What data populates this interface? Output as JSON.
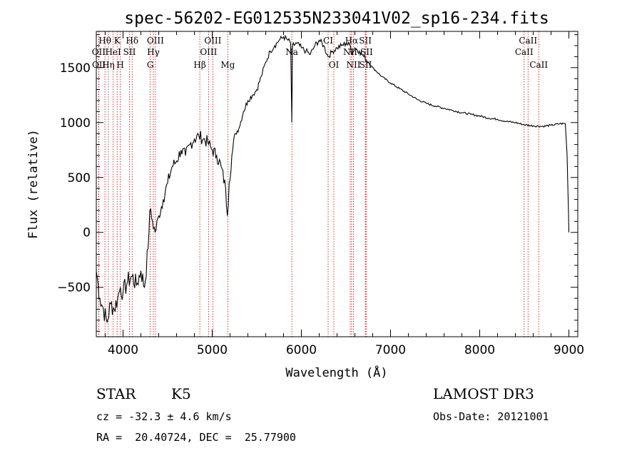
{
  "chart_data": {
    "type": "line",
    "title": "spec-56202-EG012535N233041V02_sp16-234.fits",
    "xlabel": "Wavelength (Å)",
    "ylabel": "Flux (relative)",
    "xlim": [
      3700,
      9100
    ],
    "ylim": [
      -950,
      1830
    ],
    "xticks": [
      4000,
      5000,
      6000,
      7000,
      8000,
      9000
    ],
    "yticks": [
      -500,
      0,
      500,
      1000,
      1500
    ],
    "grid": false,
    "series": [
      {
        "name": "flux",
        "x": [
          3700,
          3740,
          3780,
          3820,
          3860,
          3900,
          3940,
          3970,
          4000,
          4050,
          4100,
          4150,
          4200,
          4240,
          4280,
          4300,
          4330,
          4360,
          4400,
          4450,
          4500,
          4550,
          4600,
          4650,
          4700,
          4750,
          4800,
          4850,
          4900,
          4950,
          5000,
          5050,
          5100,
          5150,
          5170,
          5190,
          5220,
          5260,
          5300,
          5350,
          5400,
          5450,
          5500,
          5550,
          5600,
          5650,
          5700,
          5750,
          5800,
          5850,
          5880,
          5893,
          5900,
          5950,
          6000,
          6050,
          6100,
          6150,
          6200,
          6250,
          6300,
          6350,
          6400,
          6450,
          6500,
          6550,
          6563,
          6600,
          6650,
          6700,
          6750,
          6800,
          6900,
          7000,
          7100,
          7200,
          7300,
          7400,
          7500,
          7600,
          7700,
          7800,
          7900,
          8000,
          8100,
          8200,
          8300,
          8400,
          8500,
          8600,
          8700,
          8800,
          8900,
          8960,
          8980,
          8995,
          9000
        ],
        "y": [
          -350,
          -600,
          -700,
          -820,
          -650,
          -700,
          -600,
          -500,
          -550,
          -450,
          -400,
          -480,
          -350,
          -500,
          -150,
          200,
          100,
          0,
          150,
          300,
          450,
          600,
          650,
          750,
          700,
          800,
          850,
          880,
          850,
          820,
          750,
          700,
          600,
          400,
          150,
          450,
          700,
          900,
          950,
          1100,
          1200,
          1250,
          1300,
          1420,
          1550,
          1650,
          1700,
          1750,
          1780,
          1750,
          1720,
          1000,
          1700,
          1720,
          1680,
          1650,
          1620,
          1700,
          1750,
          1700,
          1600,
          1650,
          1680,
          1700,
          1720,
          1700,
          1620,
          1680,
          1650,
          1600,
          1550,
          1500,
          1420,
          1360,
          1310,
          1260,
          1210,
          1175,
          1150,
          1130,
          1110,
          1090,
          1075,
          1060,
          1040,
          1030,
          1010,
          1000,
          980,
          970,
          965,
          975,
          990,
          990,
          700,
          200,
          0
        ]
      }
    ],
    "line_markers": [
      {
        "label": "Hθ",
        "x": 3797,
        "row": 0
      },
      {
        "label": "OII",
        "x": 3727,
        "row": 1
      },
      {
        "label": "OII",
        "x": 3729,
        "row": 2
      },
      {
        "label": "Hη",
        "x": 3835,
        "row": 2
      },
      {
        "label": "K",
        "x": 3934,
        "row": 0
      },
      {
        "label": "HeI",
        "x": 3889,
        "row": 1
      },
      {
        "label": "H",
        "x": 3969,
        "row": 2
      },
      {
        "label": "SII",
        "x": 4072,
        "row": 1
      },
      {
        "label": "Hδ",
        "x": 4102,
        "row": 0
      },
      {
        "label": "OIII",
        "x": 4363,
        "row": 0
      },
      {
        "label": "Hγ",
        "x": 4340,
        "row": 1
      },
      {
        "label": "G",
        "x": 4305,
        "row": 2
      },
      {
        "label": "Hβ",
        "x": 4861,
        "row": 2
      },
      {
        "label": "OIII",
        "x": 5007,
        "row": 0
      },
      {
        "label": "OIII",
        "x": 4959,
        "row": 1
      },
      {
        "label": "Mg",
        "x": 5175,
        "row": 2
      },
      {
        "label": "Na",
        "x": 5893,
        "row": 1
      },
      {
        "label": "CI",
        "x": 6300,
        "row": 0
      },
      {
        "label": "OI",
        "x": 6364,
        "row": 2
      },
      {
        "label": "Hα",
        "x": 6563,
        "row": 0
      },
      {
        "label": "NII",
        "x": 6548,
        "row": 1
      },
      {
        "label": "NII",
        "x": 6584,
        "row": 2
      },
      {
        "label": "SII",
        "x": 6717,
        "row": 0
      },
      {
        "label": "SII",
        "x": 6731,
        "row": 1
      },
      {
        "label": "SII",
        "x": 6720,
        "row": 2
      },
      {
        "label": "CaII",
        "x": 8542,
        "row": 0
      },
      {
        "label": "CaII",
        "x": 8498,
        "row": 1
      },
      {
        "label": "CaII",
        "x": 8662,
        "row": 2
      }
    ]
  },
  "info": {
    "object_class": "STAR",
    "subclass": "K5",
    "survey": "LAMOST DR3",
    "redshift": "cz = -32.3 ± 4.6 km/s",
    "obs_date": "Obs-Date: 20121001",
    "coords": "RA =  20.40724, DEC =  25.77900"
  },
  "colors": {
    "line": "#000000",
    "marker": "#cc0000",
    "background": "#ffffff"
  }
}
